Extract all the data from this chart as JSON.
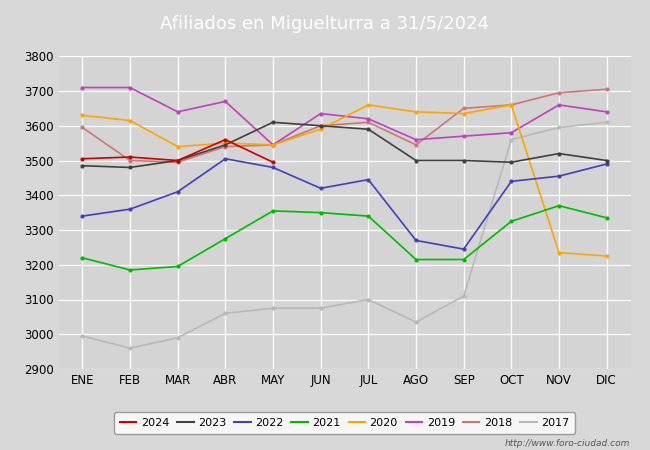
{
  "title": "Afiliados en Miguelturra a 31/5/2024",
  "title_color": "#ffffff",
  "title_bg_color": "#5b8dd9",
  "months": [
    "ENE",
    "FEB",
    "MAR",
    "ABR",
    "MAY",
    "JUN",
    "JUL",
    "AGO",
    "SEP",
    "OCT",
    "NOV",
    "DIC"
  ],
  "ylim": [
    2900,
    3800
  ],
  "yticks": [
    2900,
    3000,
    3100,
    3200,
    3300,
    3400,
    3500,
    3600,
    3700,
    3800
  ],
  "series": {
    "2024": {
      "color": "#cc0000",
      "data": [
        3505,
        3510,
        3500,
        3560,
        3495,
        null,
        null,
        null,
        null,
        null,
        null,
        null
      ]
    },
    "2023": {
      "color": "#404040",
      "data": [
        3485,
        3480,
        3500,
        3545,
        3610,
        3600,
        3590,
        3500,
        3500,
        3495,
        3520,
        3500
      ]
    },
    "2022": {
      "color": "#4040bb",
      "data": [
        3340,
        3360,
        3410,
        3505,
        3480,
        3420,
        3445,
        3270,
        3245,
        3440,
        3455,
        3490
      ]
    },
    "2021": {
      "color": "#00bb00",
      "data": [
        3220,
        3185,
        3195,
        3275,
        3355,
        3350,
        3340,
        3215,
        3215,
        3325,
        3370,
        3335
      ]
    },
    "2020": {
      "color": "#ffa500",
      "data": [
        3630,
        3615,
        3540,
        3550,
        3545,
        3590,
        3660,
        3640,
        3635,
        3660,
        3235,
        3225
      ]
    },
    "2019": {
      "color": "#bb44bb",
      "data": [
        3710,
        3710,
        3640,
        3670,
        3545,
        3635,
        3620,
        3560,
        3570,
        3580,
        3660,
        3640
      ]
    },
    "2018": {
      "color": "#cc7777",
      "data": [
        3595,
        3500,
        3495,
        3540,
        3545,
        3600,
        3610,
        3545,
        3650,
        3660,
        3695,
        3705
      ]
    },
    "2017": {
      "color": "#b8b8b8",
      "data": [
        2995,
        2960,
        2990,
        3060,
        3075,
        3075,
        3100,
        3035,
        3110,
        3560,
        3595,
        3610
      ]
    }
  },
  "fig_bg_color": "#d8d8d8",
  "plot_bg_color": "#d4d4d4",
  "grid_color": "#ffffff",
  "url_text": "http://www.foro-ciudad.com",
  "legend_order": [
    "2024",
    "2023",
    "2022",
    "2021",
    "2020",
    "2019",
    "2018",
    "2017"
  ]
}
